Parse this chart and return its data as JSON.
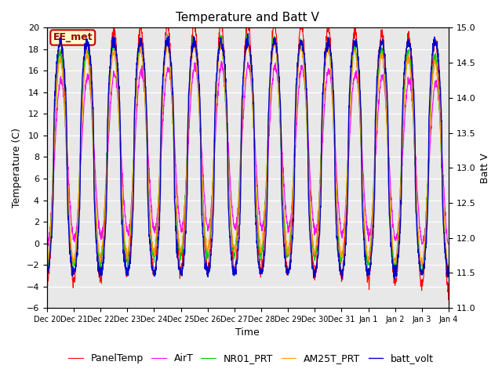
{
  "title": "Temperature and Batt V",
  "ylabel_left": "Temperature (C)",
  "ylabel_right": "Batt V",
  "xlabel": "Time",
  "annotation_text": "EE_met",
  "ylim_left": [
    -6,
    20
  ],
  "ylim_right": [
    11.0,
    15.0
  ],
  "yticks_left": [
    -6,
    -4,
    -2,
    0,
    2,
    4,
    6,
    8,
    10,
    12,
    14,
    16,
    18,
    20
  ],
  "yticks_right": [
    11.0,
    11.5,
    12.0,
    12.5,
    13.0,
    13.5,
    14.0,
    14.5,
    15.0
  ],
  "num_points": 2000,
  "colors": {
    "PanelTemp": "#ff0000",
    "AirT": "#ff00ff",
    "NR01_PRT": "#00cc00",
    "AM25T_PRT": "#ff9900",
    "batt_volt": "#0000cc"
  },
  "background_color": "#ffffff",
  "plot_bg_color": "#e8e8e8",
  "grid_color": "#ffffff",
  "title_fontsize": 11,
  "axis_fontsize": 9,
  "tick_fontsize": 8,
  "legend_fontsize": 9,
  "annotation_bg": "#ffffcc",
  "annotation_border": "#cc0000",
  "annotation_text_color": "#990000",
  "tick_labels": [
    "Dec 20",
    "Dec 21",
    "Dec 22",
    "Dec 23",
    "Dec 24",
    "Dec 25",
    "Dec 26",
    "Dec 27",
    "Dec 28",
    "Dec 29",
    "Dec 30",
    "Dec 31",
    "Jan 1",
    "Jan 2",
    "Jan 3",
    "Jan 4"
  ]
}
